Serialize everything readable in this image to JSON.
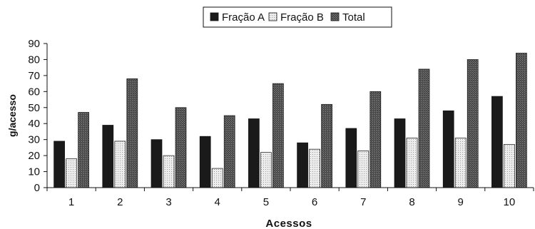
{
  "chart_data": {
    "type": "bar",
    "title": "",
    "xlabel": "Acessos",
    "ylabel": "g/acesso",
    "ylim": [
      0,
      90
    ],
    "yticks": [
      0,
      10,
      20,
      30,
      40,
      50,
      60,
      70,
      80,
      90
    ],
    "grid": false,
    "legend_position": "top-center",
    "categories": [
      "1",
      "2",
      "3",
      "4",
      "5",
      "6",
      "7",
      "8",
      "9",
      "10"
    ],
    "series": [
      {
        "name": "Fração A",
        "color": "#1a1a1a",
        "pattern": "solid-dark",
        "values": [
          29,
          39,
          30,
          32,
          43,
          28,
          37,
          43,
          48,
          57
        ]
      },
      {
        "name": "Fração B",
        "color": "#e6e6e6",
        "pattern": "light-dotted",
        "values": [
          18,
          29,
          20,
          12,
          22,
          24,
          23,
          31,
          31,
          27
        ]
      },
      {
        "name": "Total",
        "color": "#555555",
        "pattern": "dark-checker",
        "values": [
          47,
          68,
          50,
          45,
          65,
          52,
          60,
          74,
          80,
          84
        ]
      }
    ]
  }
}
